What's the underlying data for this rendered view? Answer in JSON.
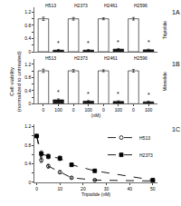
{
  "chart_data": [
    {
      "type": "bar",
      "title": "1A",
      "categories": [
        null,
        null,
        null,
        null,
        null,
        null,
        null,
        null
      ],
      "values": [
        1.0,
        0.05,
        1.0,
        0.05,
        1.0,
        0.08,
        1.0,
        0.06
      ],
      "errors": [
        0.05,
        0.02,
        0.04,
        0.02,
        0.03,
        0.02,
        0.04,
        0.02
      ],
      "colors": [
        "#ffffff",
        "#1a1a1a",
        "#ffffff",
        "#1a1a1a",
        "#ffffff",
        "#1a1a1a",
        "#ffffff",
        "#1a1a1a"
      ],
      "ylim": [
        0,
        1.35
      ],
      "yticks": [
        0,
        {
          "value": 0.2,
          "label": null
        },
        0.4,
        {
          "value": 0.6,
          "label": null
        },
        0.8,
        {
          "value": 1.0,
          "label": null
        },
        1.2
      ],
      "grid": false,
      "annotations": [
        {
          "text": "Triptolide"
        },
        {
          "text": "H513",
          "x": 0.5,
          "y": 1.26
        },
        {
          "text": "H2373",
          "x": 2.5,
          "y": 1.26
        },
        {
          "text": "H2461",
          "x": 4.5,
          "y": 1.26
        },
        {
          "text": "H2596",
          "x": 6.5,
          "y": 1.26
        },
        {
          "text": "*",
          "x": 1,
          "y": 0.12
        },
        {
          "text": "*",
          "x": 3,
          "y": 0.12
        },
        {
          "text": "*",
          "x": 5,
          "y": 0.15
        },
        {
          "text": "*",
          "x": 7,
          "y": 0.13
        }
      ]
    },
    {
      "type": "bar",
      "title": "1B",
      "xlabel": "(nM)",
      "ylabel": "Cell viability\n(normalized to untreated)",
      "categories": [
        "0",
        "100",
        "0",
        "100",
        "0",
        "100",
        "0",
        "100"
      ],
      "values": [
        1.0,
        0.12,
        1.0,
        0.08,
        1.0,
        0.07,
        1.0,
        0.06
      ],
      "errors": [
        0.05,
        0.03,
        0.04,
        0.02,
        0.03,
        0.02,
        0.04,
        0.02
      ],
      "colors": [
        "#ffffff",
        "#1a1a1a",
        "#ffffff",
        "#1a1a1a",
        "#ffffff",
        "#1a1a1a",
        "#ffffff",
        "#1a1a1a"
      ],
      "ylim": [
        0,
        1.35
      ],
      "yticks": [
        0,
        {
          "value": 0.2,
          "label": null
        },
        0.4,
        {
          "value": 0.6,
          "label": null
        },
        0.8,
        {
          "value": 1.0,
          "label": null
        },
        1.2
      ],
      "grid": false,
      "annotations": [
        {
          "text": "Minnelide"
        },
        {
          "text": "H513",
          "x": 0.5,
          "y": 1.26
        },
        {
          "text": "H2373",
          "x": 2.5,
          "y": 1.26
        },
        {
          "text": "H2461",
          "x": 4.5,
          "y": 1.26
        },
        {
          "text": "H2596",
          "x": 6.5,
          "y": 1.26
        },
        {
          "text": "*",
          "x": 1,
          "y": 0.2
        },
        {
          "text": "*",
          "x": 3,
          "y": 0.15
        },
        {
          "text": "*",
          "x": 5,
          "y": 0.14
        },
        {
          "text": "*",
          "x": 7,
          "y": 0.13
        }
      ]
    },
    {
      "type": "line",
      "title": "1C",
      "xlabel": "Triptolide (nM)",
      "x": [
        0,
        2,
        5,
        10,
        15,
        25,
        50
      ],
      "series": [
        {
          "name": "H513",
          "color": "#000000",
          "marker": "circle-open",
          "line_style": "dash",
          "values": [
            1.0,
            0.48,
            0.35,
            0.22,
            0.1,
            0.05,
            0.03
          ],
          "errors": [
            0.0,
            0.05,
            0.04,
            0.03,
            0.02,
            0.01,
            0.01
          ]
        },
        {
          "name": "H2373",
          "color": "#000000",
          "marker": "square",
          "line_style": "dash",
          "values": [
            1.0,
            0.62,
            0.56,
            0.52,
            0.38,
            0.25,
            0.05
          ],
          "errors": [
            0.0,
            0.06,
            0.05,
            0.05,
            0.04,
            0.03,
            0.01
          ]
        }
      ],
      "xlim": [
        -1,
        52
      ],
      "xticks": [
        0,
        10,
        20,
        30,
        40,
        50
      ],
      "ylim": [
        0,
        1.25
      ],
      "yticks": [
        0,
        {
          "value": 0.2,
          "label": null
        },
        0.4,
        {
          "value": 0.6,
          "label": null
        },
        0.8,
        {
          "value": 1.0,
          "label": null
        },
        1.2
      ],
      "grid": false,
      "legend": "upper right"
    }
  ]
}
